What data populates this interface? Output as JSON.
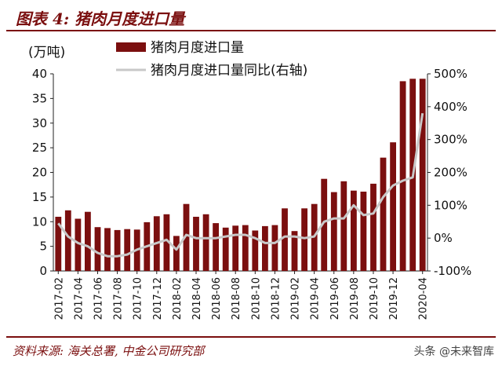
{
  "header": {
    "title": "图表 4:  猪肉月度进口量"
  },
  "footer": {
    "source": "资料来源:  海关总署,  中金公司研究部",
    "watermark": "头条 @未来智库"
  },
  "colors": {
    "bar": "#7b0f0f",
    "line": "#c8c8c8",
    "accent": "#7b0f0f"
  },
  "chart_data": {
    "type": "bar",
    "title": "",
    "ylabel": "(万吨)",
    "y2label": "",
    "ylim": [
      0,
      40
    ],
    "y2lim": [
      -100,
      500
    ],
    "y_ticks": [
      "0",
      "5",
      "10",
      "15",
      "20",
      "25",
      "30",
      "35",
      "40"
    ],
    "y2_ticks": [
      "-100%",
      "0%",
      "100%",
      "200%",
      "300%",
      "400%",
      "500%"
    ],
    "x_tick_labels": [
      "2017-02",
      "2017-04",
      "2017-06",
      "2017-08",
      "2017-10",
      "2017-12",
      "2018-02",
      "2018-04",
      "2018-06",
      "2018-08",
      "2018-10",
      "2018-12",
      "2019-02",
      "2019-04",
      "2019-06",
      "2019-08",
      "2019-10",
      "2019-12",
      "2020-04"
    ],
    "categories": [
      "2017-02",
      "2017-03",
      "2017-04",
      "2017-05",
      "2017-06",
      "2017-07",
      "2017-08",
      "2017-09",
      "2017-10",
      "2017-11",
      "2017-12",
      "2018-01",
      "2018-02",
      "2018-03",
      "2018-04",
      "2018-05",
      "2018-06",
      "2018-07",
      "2018-08",
      "2018-09",
      "2018-10",
      "2018-11",
      "2018-12",
      "2019-01",
      "2019-02",
      "2019-03",
      "2019-04",
      "2019-05",
      "2019-06",
      "2019-07",
      "2019-08",
      "2019-09",
      "2019-10",
      "2019-11",
      "2019-12",
      "2020-01",
      "2020-03",
      "2020-04"
    ],
    "legend": [
      "猪肉月度进口量",
      "猪肉月度进口量同比(右轴)"
    ],
    "legend_placement": "top",
    "series": [
      {
        "name": "猪肉月度进口量",
        "axis": "left",
        "type": "bar",
        "values": [
          11.0,
          12.3,
          10.6,
          12.0,
          8.9,
          8.7,
          8.3,
          8.5,
          8.4,
          9.9,
          11.1,
          11.5,
          7.1,
          13.6,
          11.0,
          11.5,
          9.7,
          8.8,
          9.2,
          9.3,
          8.2,
          9.1,
          9.3,
          12.7,
          8.1,
          12.7,
          13.6,
          18.7,
          16.0,
          18.2,
          16.3,
          16.1,
          17.7,
          23.0,
          26.1,
          38.5,
          39.0,
          39.0
        ]
      },
      {
        "name": "猪肉月度进口量同比(右轴)",
        "axis": "right",
        "type": "line",
        "values": [
          45,
          5,
          -15,
          -25,
          -45,
          -55,
          -55,
          -50,
          -35,
          -25,
          -15,
          -5,
          -35,
          10,
          0,
          0,
          0,
          5,
          10,
          10,
          0,
          -15,
          -15,
          5,
          5,
          0,
          5,
          50,
          60,
          60,
          100,
          70,
          75,
          125,
          160,
          175,
          185,
          380
        ]
      }
    ]
  }
}
